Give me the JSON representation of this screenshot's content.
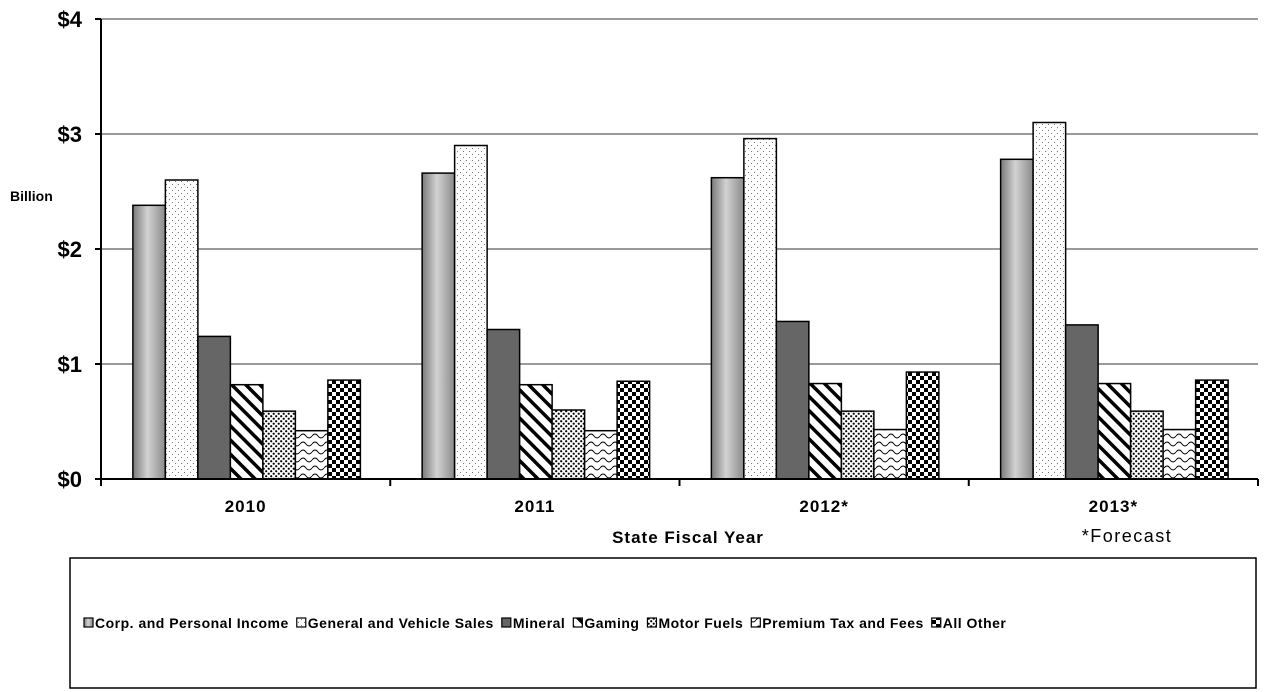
{
  "chart_data": {
    "type": "bar",
    "ylabel": "Billion",
    "xlabel": "State Fiscal Year",
    "note": "*Forecast",
    "ylim": [
      0,
      4
    ],
    "yticks": [
      "$0",
      "$1",
      "$2",
      "$3",
      "$4"
    ],
    "categories": [
      "2010",
      "2011",
      "2012*",
      "2013*"
    ],
    "grid": true,
    "legend_position": "bottom",
    "series": [
      {
        "name": "Corp. and Personal Income",
        "values": [
          2.38,
          2.66,
          2.62,
          2.78
        ],
        "pattern": "gray-gradient"
      },
      {
        "name": "General and Vehicle Sales",
        "values": [
          2.6,
          2.9,
          2.96,
          3.1
        ],
        "pattern": "fine-dots"
      },
      {
        "name": "Mineral",
        "values": [
          1.24,
          1.3,
          1.37,
          1.34
        ],
        "pattern": "dark-gray"
      },
      {
        "name": "Gaming",
        "values": [
          0.82,
          0.82,
          0.83,
          0.83
        ],
        "pattern": "diagonal-stripes"
      },
      {
        "name": "Motor Fuels",
        "values": [
          0.59,
          0.6,
          0.59,
          0.59
        ],
        "pattern": "dense-dots"
      },
      {
        "name": "Premium Tax and Fees",
        "values": [
          0.42,
          0.42,
          0.43,
          0.43
        ],
        "pattern": "waves"
      },
      {
        "name": "All Other",
        "values": [
          0.86,
          0.85,
          0.93,
          0.86
        ],
        "pattern": "checker"
      }
    ]
  }
}
